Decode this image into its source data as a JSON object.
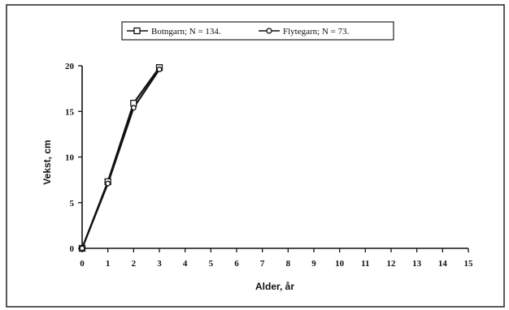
{
  "chart_data": {
    "type": "line",
    "title": "",
    "xlabel": "Alder, år",
    "ylabel": "Vekst, cm",
    "xlim": [
      0,
      15
    ],
    "ylim": [
      0,
      20
    ],
    "x_ticks": [
      0,
      1,
      2,
      3,
      4,
      5,
      6,
      7,
      8,
      9,
      10,
      11,
      12,
      13,
      14,
      15
    ],
    "y_ticks": [
      0,
      5,
      10,
      15,
      20
    ],
    "grid": false,
    "legend_position": "top-center",
    "series": [
      {
        "name": "Botngarn; N = 134.",
        "marker": "square",
        "color": "#111111",
        "x": [
          0,
          1,
          2,
          3
        ],
        "y": [
          0,
          7.3,
          15.9,
          19.8
        ]
      },
      {
        "name": "Flytegarn; N = 73.",
        "marker": "circle",
        "color": "#111111",
        "x": [
          0,
          1,
          2,
          3
        ],
        "y": [
          0,
          7.1,
          15.4,
          19.6
        ]
      }
    ]
  }
}
